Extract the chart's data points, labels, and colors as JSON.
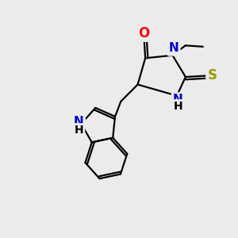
{
  "bg_color": "#ebebeb",
  "bond_color": "#000000",
  "bond_width": 1.6,
  "atom_colors": {
    "O": "#ff0000",
    "N": "#0000cd",
    "S": "#999900",
    "C": "#000000",
    "H": "#000000"
  },
  "font_size": 11,
  "figsize": [
    3.0,
    3.0
  ],
  "dpi": 100
}
